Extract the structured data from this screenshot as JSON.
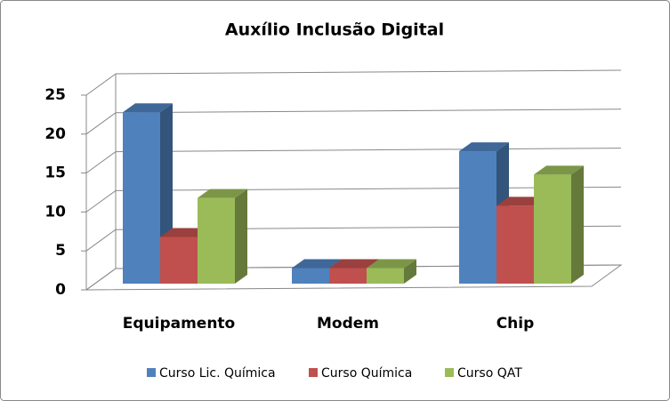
{
  "chart_data": {
    "type": "bar3d",
    "title": "Auxílio Inclusão Digital",
    "categories": [
      "Equipamento",
      "Modem",
      "Chip"
    ],
    "series": [
      {
        "name": "Curso Lic. Química",
        "color": "#4F81BD",
        "values": [
          22,
          2,
          17
        ]
      },
      {
        "name": "Curso Química",
        "color": "#C0504D",
        "values": [
          6,
          2,
          10
        ]
      },
      {
        "name": "Curso QAT",
        "color": "#9BBB59",
        "values": [
          11,
          2,
          14
        ]
      }
    ],
    "ylim": [
      0,
      25
    ],
    "yticks": [
      0,
      5,
      10,
      15,
      20,
      25
    ],
    "grid": true,
    "legend": "bottom"
  }
}
